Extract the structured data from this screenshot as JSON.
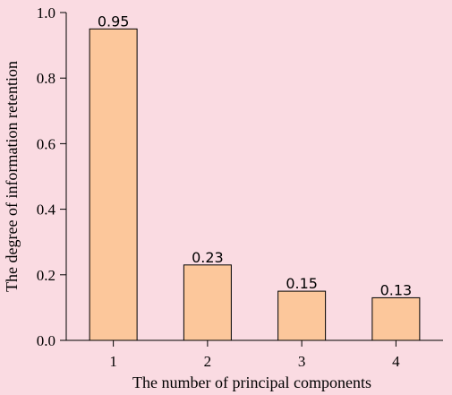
{
  "chart_data": {
    "type": "bar",
    "categories": [
      "1",
      "2",
      "3",
      "4"
    ],
    "values": [
      0.95,
      0.23,
      0.15,
      0.13
    ],
    "data_labels": [
      "0.95",
      "0.23",
      "0.15",
      "0.13"
    ],
    "xlabel": "The number of principal components",
    "ylabel": "The degree of information retention",
    "ylim": [
      0,
      1.0
    ],
    "yticks": [
      0.0,
      0.2,
      0.4,
      0.6,
      0.8,
      1.0
    ],
    "ytick_labels": [
      "0.0",
      "0.2",
      "0.4",
      "0.6",
      "0.8",
      "1.0"
    ],
    "grid": false,
    "bar_color": "#fcc79b",
    "bar_edge_color": "#000000",
    "background_color": "#fadbe2"
  }
}
